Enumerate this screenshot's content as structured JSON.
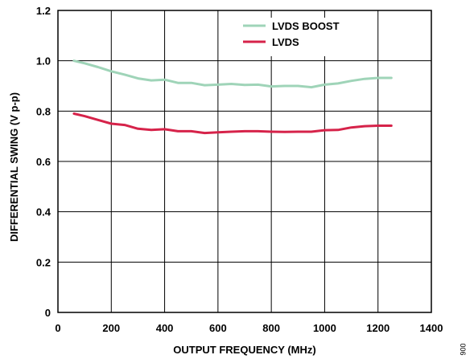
{
  "chart_data": {
    "type": "line",
    "xlabel": "OUTPUT FREQUENCY (MHz)",
    "ylabel": "DIFFERENTIAL SWING (V p-p)",
    "xlim": [
      0,
      1400
    ],
    "ylim": [
      0,
      1.2
    ],
    "xticks": [
      "0",
      "200",
      "400",
      "600",
      "800",
      "1000",
      "1200",
      "1400"
    ],
    "yticks": [
      "0",
      "0.2",
      "0.4",
      "0.6",
      "0.8",
      "1.0",
      "1.2"
    ],
    "grid": true,
    "legend_position": "top-right",
    "series": [
      {
        "name": "LVDS BOOST",
        "color": "#9fd4b8",
        "x": [
          60,
          100,
          150,
          200,
          250,
          300,
          350,
          400,
          450,
          500,
          550,
          600,
          650,
          700,
          750,
          800,
          850,
          900,
          950,
          1000,
          1050,
          1100,
          1150,
          1200,
          1250
        ],
        "y": [
          1.0,
          0.99,
          0.975,
          0.958,
          0.945,
          0.93,
          0.922,
          0.925,
          0.912,
          0.912,
          0.903,
          0.905,
          0.908,
          0.904,
          0.905,
          0.898,
          0.9,
          0.9,
          0.895,
          0.905,
          0.91,
          0.92,
          0.928,
          0.932,
          0.932
        ]
      },
      {
        "name": "LVDS",
        "color": "#d6234a",
        "x": [
          60,
          100,
          150,
          200,
          250,
          300,
          350,
          400,
          450,
          500,
          550,
          600,
          650,
          700,
          750,
          800,
          850,
          900,
          950,
          1000,
          1050,
          1100,
          1150,
          1200,
          1250
        ],
        "y": [
          0.79,
          0.78,
          0.765,
          0.75,
          0.745,
          0.73,
          0.725,
          0.728,
          0.72,
          0.72,
          0.713,
          0.716,
          0.718,
          0.72,
          0.72,
          0.718,
          0.717,
          0.718,
          0.718,
          0.724,
          0.725,
          0.735,
          0.74,
          0.742,
          0.742
        ]
      }
    ]
  },
  "figure_id": "006"
}
